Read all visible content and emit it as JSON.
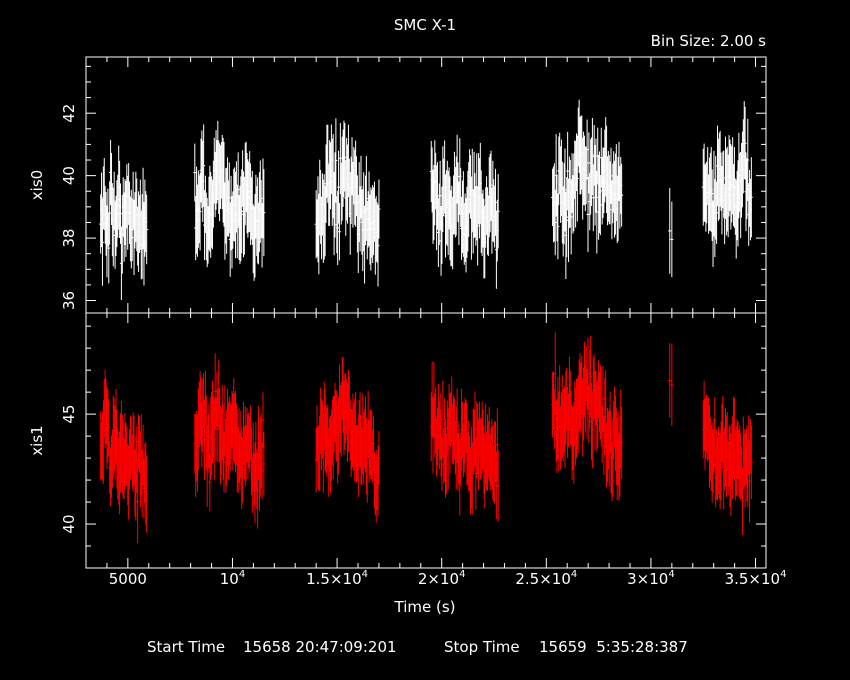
{
  "chart_data": {
    "type": "line",
    "title": "SMC X-1",
    "subtitle": "Bin Size: 2.00 s",
    "xlabel": "Time (s)",
    "xlim": [
      3000,
      35500
    ],
    "x_ticks": [
      {
        "value": 5000,
        "base": "5000",
        "exp": ""
      },
      {
        "value": 10000,
        "base": "10",
        "exp": "4"
      },
      {
        "value": 15000,
        "base": "1.5×10",
        "exp": "4"
      },
      {
        "value": 20000,
        "base": "2×10",
        "exp": "4"
      },
      {
        "value": 25000,
        "base": "2.5×10",
        "exp": "4"
      },
      {
        "value": 30000,
        "base": "3×10",
        "exp": "4"
      },
      {
        "value": 35000,
        "base": "3.5×10",
        "exp": "4"
      }
    ],
    "footer": {
      "start_label": "Start Time",
      "start_value": "15658 20:47:09:201",
      "stop_label": "Stop Time",
      "stop_value": "15659  5:35:28:387"
    },
    "segments": [
      [
        3700,
        5900
      ],
      [
        8200,
        11500
      ],
      [
        14000,
        17000
      ],
      [
        19500,
        22700
      ],
      [
        25300,
        28600
      ],
      [
        30900,
        31000
      ],
      [
        32500,
        34800
      ]
    ],
    "panels": [
      {
        "name": "xis0",
        "ylabel": "xis0",
        "color": "#ffffff",
        "ylim": [
          35.6,
          43.8
        ],
        "y_ticks": [
          36,
          38,
          40,
          42
        ],
        "points": [
          [
            3800,
            38.7
          ],
          [
            4000,
            38.1
          ],
          [
            4200,
            39.6
          ],
          [
            4400,
            38.2
          ],
          [
            4600,
            39.1
          ],
          [
            4800,
            38.0
          ],
          [
            5000,
            39.0
          ],
          [
            5200,
            38.4
          ],
          [
            5400,
            39.1
          ],
          [
            5600,
            37.9
          ],
          [
            5800,
            38.5
          ],
          [
            8300,
            39.1
          ],
          [
            8600,
            39.7
          ],
          [
            8900,
            38.4
          ],
          [
            9200,
            40.0
          ],
          [
            9500,
            39.5
          ],
          [
            9800,
            38.6
          ],
          [
            10100,
            39.4
          ],
          [
            10400,
            38.8
          ],
          [
            10700,
            39.7
          ],
          [
            11000,
            38.5
          ],
          [
            11300,
            38.9
          ],
          [
            14100,
            38.6
          ],
          [
            14400,
            39.3
          ],
          [
            14700,
            39.9
          ],
          [
            15000,
            38.8
          ],
          [
            15300,
            40.2
          ],
          [
            15600,
            39.1
          ],
          [
            15900,
            39.6
          ],
          [
            16200,
            38.5
          ],
          [
            16500,
            39.0
          ],
          [
            16800,
            38.3
          ],
          [
            19600,
            39.6
          ],
          [
            19900,
            38.5
          ],
          [
            20200,
            39.4
          ],
          [
            20500,
            38.6
          ],
          [
            20800,
            39.7
          ],
          [
            21100,
            38.3
          ],
          [
            21400,
            39.2
          ],
          [
            21700,
            38.9
          ],
          [
            22000,
            38.2
          ],
          [
            22300,
            39.3
          ],
          [
            22600,
            38.4
          ],
          [
            25400,
            39.1
          ],
          [
            25700,
            40.0
          ],
          [
            26000,
            38.9
          ],
          [
            26300,
            39.7
          ],
          [
            26600,
            40.6
          ],
          [
            26900,
            39.8
          ],
          [
            27200,
            40.1
          ],
          [
            27500,
            39.3
          ],
          [
            27800,
            40.4
          ],
          [
            28100,
            39.1
          ],
          [
            28400,
            39.5
          ],
          [
            30950,
            38.4
          ],
          [
            32600,
            39.7
          ],
          [
            32900,
            38.5
          ],
          [
            33200,
            40.2
          ],
          [
            33500,
            39.4
          ],
          [
            33800,
            39.8
          ],
          [
            34100,
            39.0
          ],
          [
            34400,
            40.1
          ],
          [
            34700,
            39.4
          ]
        ]
      },
      {
        "name": "xis1",
        "ylabel": "xis1",
        "color": "#ff0000",
        "ylim": [
          38.0,
          49.6
        ],
        "y_ticks": [
          40,
          45
        ],
        "points": [
          [
            3800,
            44.0
          ],
          [
            4000,
            45.1
          ],
          [
            4200,
            43.2
          ],
          [
            4400,
            44.4
          ],
          [
            4600,
            42.6
          ],
          [
            4800,
            43.4
          ],
          [
            5000,
            42.2
          ],
          [
            5200,
            43.6
          ],
          [
            5400,
            42.0
          ],
          [
            5600,
            42.6
          ],
          [
            5800,
            41.3
          ],
          [
            8300,
            43.9
          ],
          [
            8600,
            44.8
          ],
          [
            8900,
            43.4
          ],
          [
            9200,
            45.2
          ],
          [
            9500,
            44.1
          ],
          [
            9800,
            43.6
          ],
          [
            10100,
            44.4
          ],
          [
            10400,
            43.0
          ],
          [
            10700,
            43.8
          ],
          [
            11000,
            42.4
          ],
          [
            11300,
            43.2
          ],
          [
            14100,
            43.5
          ],
          [
            14400,
            44.3
          ],
          [
            14700,
            43.1
          ],
          [
            15000,
            44.6
          ],
          [
            15300,
            45.8
          ],
          [
            15600,
            44.7
          ],
          [
            15900,
            43.4
          ],
          [
            16200,
            42.8
          ],
          [
            16500,
            43.6
          ],
          [
            16800,
            42.5
          ],
          [
            19600,
            45.1
          ],
          [
            19900,
            44.2
          ],
          [
            20200,
            43.5
          ],
          [
            20500,
            44.7
          ],
          [
            20800,
            43.2
          ],
          [
            21100,
            43.9
          ],
          [
            21400,
            42.5
          ],
          [
            21700,
            43.7
          ],
          [
            22000,
            42.8
          ],
          [
            22300,
            43.3
          ],
          [
            22600,
            42.4
          ],
          [
            25400,
            45.2
          ],
          [
            25700,
            44.3
          ],
          [
            26000,
            45.1
          ],
          [
            26300,
            43.8
          ],
          [
            26600,
            45.6
          ],
          [
            26900,
            46.1
          ],
          [
            27200,
            44.9
          ],
          [
            27500,
            45.4
          ],
          [
            27800,
            44.2
          ],
          [
            28100,
            43.4
          ],
          [
            28400,
            43.8
          ],
          [
            30950,
            46.2
          ],
          [
            32600,
            44.4
          ],
          [
            32900,
            43.2
          ],
          [
            33200,
            42.6
          ],
          [
            33500,
            43.8
          ],
          [
            33800,
            42.4
          ],
          [
            34100,
            43.0
          ],
          [
            34400,
            42.1
          ],
          [
            34700,
            42.9
          ]
        ]
      }
    ]
  }
}
